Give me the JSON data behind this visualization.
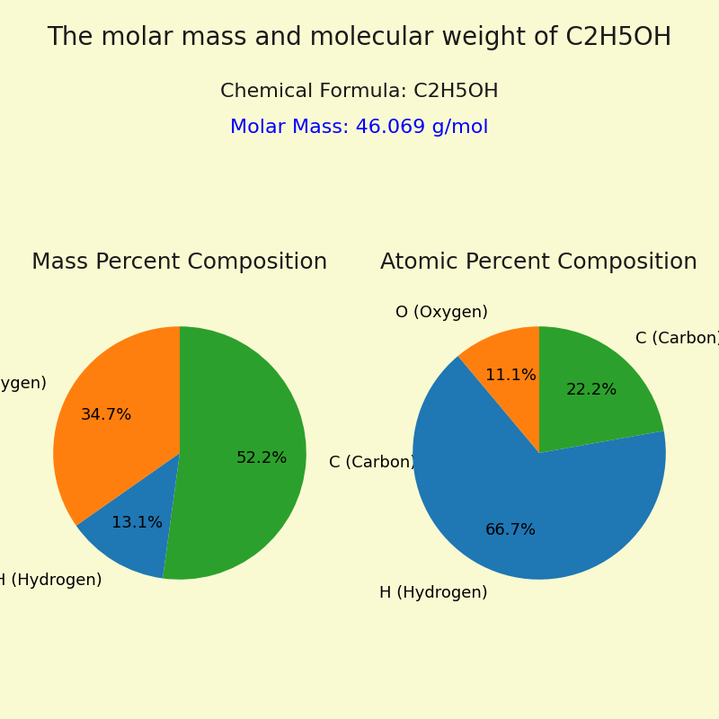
{
  "title": "The molar mass and molecular weight of C2H5OH",
  "chemical_formula_label": "Chemical Formula: C2H5OH",
  "molar_mass_label": "Molar Mass: 46.069 g/mol",
  "molar_mass_color": "#0000FF",
  "background_color": "#FAFAD2",
  "title_fontsize": 20,
  "info_fontsize": 16,
  "subtitle1": "Mass Percent Composition",
  "subtitle2": "Atomic Percent Composition",
  "subtitle_fontsize": 18,
  "mass_values": [
    52.1,
    13.1,
    34.7
  ],
  "mass_labels": [
    "C (Carbon)",
    "H (Hydrogen)",
    "O (Oxygen)"
  ],
  "mass_colors": [
    "#2ca02c",
    "#1f77b4",
    "#ff7f0e"
  ],
  "mass_startangle": 90,
  "atomic_values": [
    22.2,
    66.7,
    11.1
  ],
  "atomic_labels": [
    "C (Carbon)",
    "H (Hydrogen)",
    "O (Oxygen)"
  ],
  "atomic_colors": [
    "#2ca02c",
    "#1f77b4",
    "#ff7f0e"
  ],
  "atomic_startangle": 90,
  "pie_pct_fontsize": 13,
  "pie_label_fontsize": 13
}
